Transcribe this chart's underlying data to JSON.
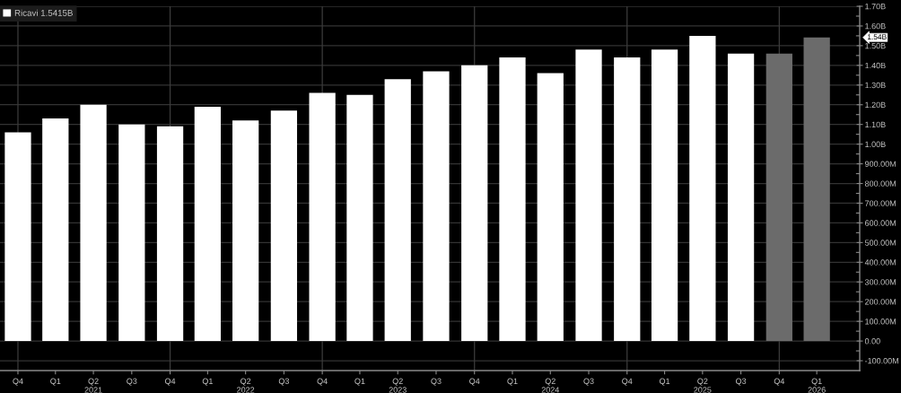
{
  "chart_data": {
    "type": "bar",
    "x": [
      "2020-12-31",
      "2021-03-31",
      "2021-06-30",
      "2021-09-30",
      "2021-12-31",
      "2022-03-31",
      "2022-06-30",
      "2022-09-30",
      "2022-12-31",
      "2023-03-31",
      "2023-06-30",
      "2023-09-30",
      "2023-12-31",
      "2024-03-31",
      "2024-06-30",
      "2024-09-30",
      "2024-12-31",
      "2025-03-31",
      "2025-06-30",
      "2025-09-30",
      "2025-12-31",
      "2026-03-31"
    ],
    "series": [
      {
        "name": "Ricavi 1.5415B",
        "color": "#ffffff",
        "colors": [
          "#ffffff",
          "#ffffff",
          "#ffffff",
          "#ffffff",
          "#ffffff",
          "#ffffff",
          "#ffffff",
          "#ffffff",
          "#ffffff",
          "#ffffff",
          "#ffffff",
          "#ffffff",
          "#ffffff",
          "#ffffff",
          "#ffffff",
          "#ffffff",
          "#ffffff",
          "#ffffff",
          "#ffffff",
          "#ffffff",
          "#6b6b6b",
          "#6b6b6b"
        ],
        "values": [
          1060000000,
          1130000000,
          1200000000,
          1100000000,
          1090000000,
          1190000000,
          1120000000,
          1170000000,
          1260000000,
          1250000000,
          1330000000,
          1370000000,
          1400000000,
          1440000000,
          1360000000,
          1480000000,
          1440000000,
          1480000000,
          1550000000,
          1460000000,
          1460000000,
          1541500000
        ]
      }
    ],
    "xlim": [
      "2020-11-18",
      "2026-07-12"
    ],
    "xticks": [
      {
        "value": "2020-12-31",
        "label": "Q4"
      },
      {
        "value": "2021-03-31",
        "label": "Q1"
      },
      {
        "value": "2021-06-30",
        "label": "Q2\n2021"
      },
      {
        "value": "2021-09-30",
        "label": "Q3"
      },
      {
        "value": "2021-12-31",
        "label": "Q4"
      },
      {
        "value": "2022-03-31",
        "label": "Q1"
      },
      {
        "value": "2022-06-30",
        "label": "Q2\n2022"
      },
      {
        "value": "2022-09-30",
        "label": "Q3"
      },
      {
        "value": "2022-12-31",
        "label": "Q4"
      },
      {
        "value": "2023-03-31",
        "label": "Q1"
      },
      {
        "value": "2023-06-30",
        "label": "Q2\n2023"
      },
      {
        "value": "2023-09-30",
        "label": "Q3"
      },
      {
        "value": "2023-12-31",
        "label": "Q4"
      },
      {
        "value": "2024-03-31",
        "label": "Q1"
      },
      {
        "value": "2024-06-30",
        "label": "Q2\n2024"
      },
      {
        "value": "2024-09-30",
        "label": "Q3"
      },
      {
        "value": "2024-12-31",
        "label": "Q4"
      },
      {
        "value": "2025-03-31",
        "label": "Q1"
      },
      {
        "value": "2025-06-30",
        "label": "Q2\n2025"
      },
      {
        "value": "2025-09-30",
        "label": "Q3"
      },
      {
        "value": "2025-12-31",
        "label": "Q4"
      },
      {
        "value": "2026-03-31",
        "label": "Q1\n2026"
      }
    ],
    "ylim": [
      -150000000,
      1700000000
    ],
    "yticks": [
      {
        "value": -100000000,
        "label": "-100.00M"
      },
      {
        "value": 0,
        "label": "0.00"
      },
      {
        "value": 100000000,
        "label": "100.00M"
      },
      {
        "value": 200000000,
        "label": "200.00M"
      },
      {
        "value": 300000000,
        "label": "300.00M"
      },
      {
        "value": 400000000,
        "label": "400.00M"
      },
      {
        "value": 500000000,
        "label": "500.00M"
      },
      {
        "value": 600000000,
        "label": "600.00M"
      },
      {
        "value": 700000000,
        "label": "700.00M"
      },
      {
        "value": 800000000,
        "label": "800.00M"
      },
      {
        "value": 900000000,
        "label": "900.00M"
      },
      {
        "value": 1000000000,
        "label": "1.00B"
      },
      {
        "value": 1100000000,
        "label": "1.10B"
      },
      {
        "value": 1200000000,
        "label": "1.20B"
      },
      {
        "value": 1300000000,
        "label": "1.30B"
      },
      {
        "value": 1400000000,
        "label": "1.40B"
      },
      {
        "value": 1500000000,
        "label": "1.50B"
      },
      {
        "value": 1600000000,
        "label": "1.60B"
      },
      {
        "value": 1700000000,
        "label": "1.70B"
      },
      {
        "value": -50000000,
        "label": null
      },
      {
        "value": 50000000,
        "label": null
      },
      {
        "value": 150000000,
        "label": null
      },
      {
        "value": 250000000,
        "label": null
      },
      {
        "value": 350000000,
        "label": null
      },
      {
        "value": 450000000,
        "label": null
      },
      {
        "value": 550000000,
        "label": null
      },
      {
        "value": 650000000,
        "label": null
      },
      {
        "value": 750000000,
        "label": null
      },
      {
        "value": 850000000,
        "label": null
      },
      {
        "value": 950000000,
        "label": null
      },
      {
        "value": 1050000000,
        "label": null
      },
      {
        "value": 1150000000,
        "label": null
      },
      {
        "value": 1250000000,
        "label": null
      },
      {
        "value": 1350000000,
        "label": null
      },
      {
        "value": 1450000000,
        "label": null
      },
      {
        "value": 1550000000,
        "label": null
      },
      {
        "value": 1650000000,
        "label": null
      }
    ],
    "grid": "y",
    "legend": "top left",
    "ref_lines": [
      {
        "axis": "x",
        "value": "2020-12-31",
        "color": "#3c3c3c"
      },
      {
        "axis": "x",
        "value": "2021-12-31",
        "color": "#3c3c3c"
      },
      {
        "axis": "x",
        "value": "2022-12-31",
        "color": "#3c3c3c"
      },
      {
        "axis": "x",
        "value": "2023-12-31",
        "color": "#3c3c3c"
      },
      {
        "axis": "x",
        "value": "2024-12-31",
        "color": "#3c3c3c"
      },
      {
        "axis": "x",
        "value": "2025-12-31",
        "color": "#3c3c3c"
      }
    ],
    "annotations": [
      "1.54B"
    ]
  }
}
